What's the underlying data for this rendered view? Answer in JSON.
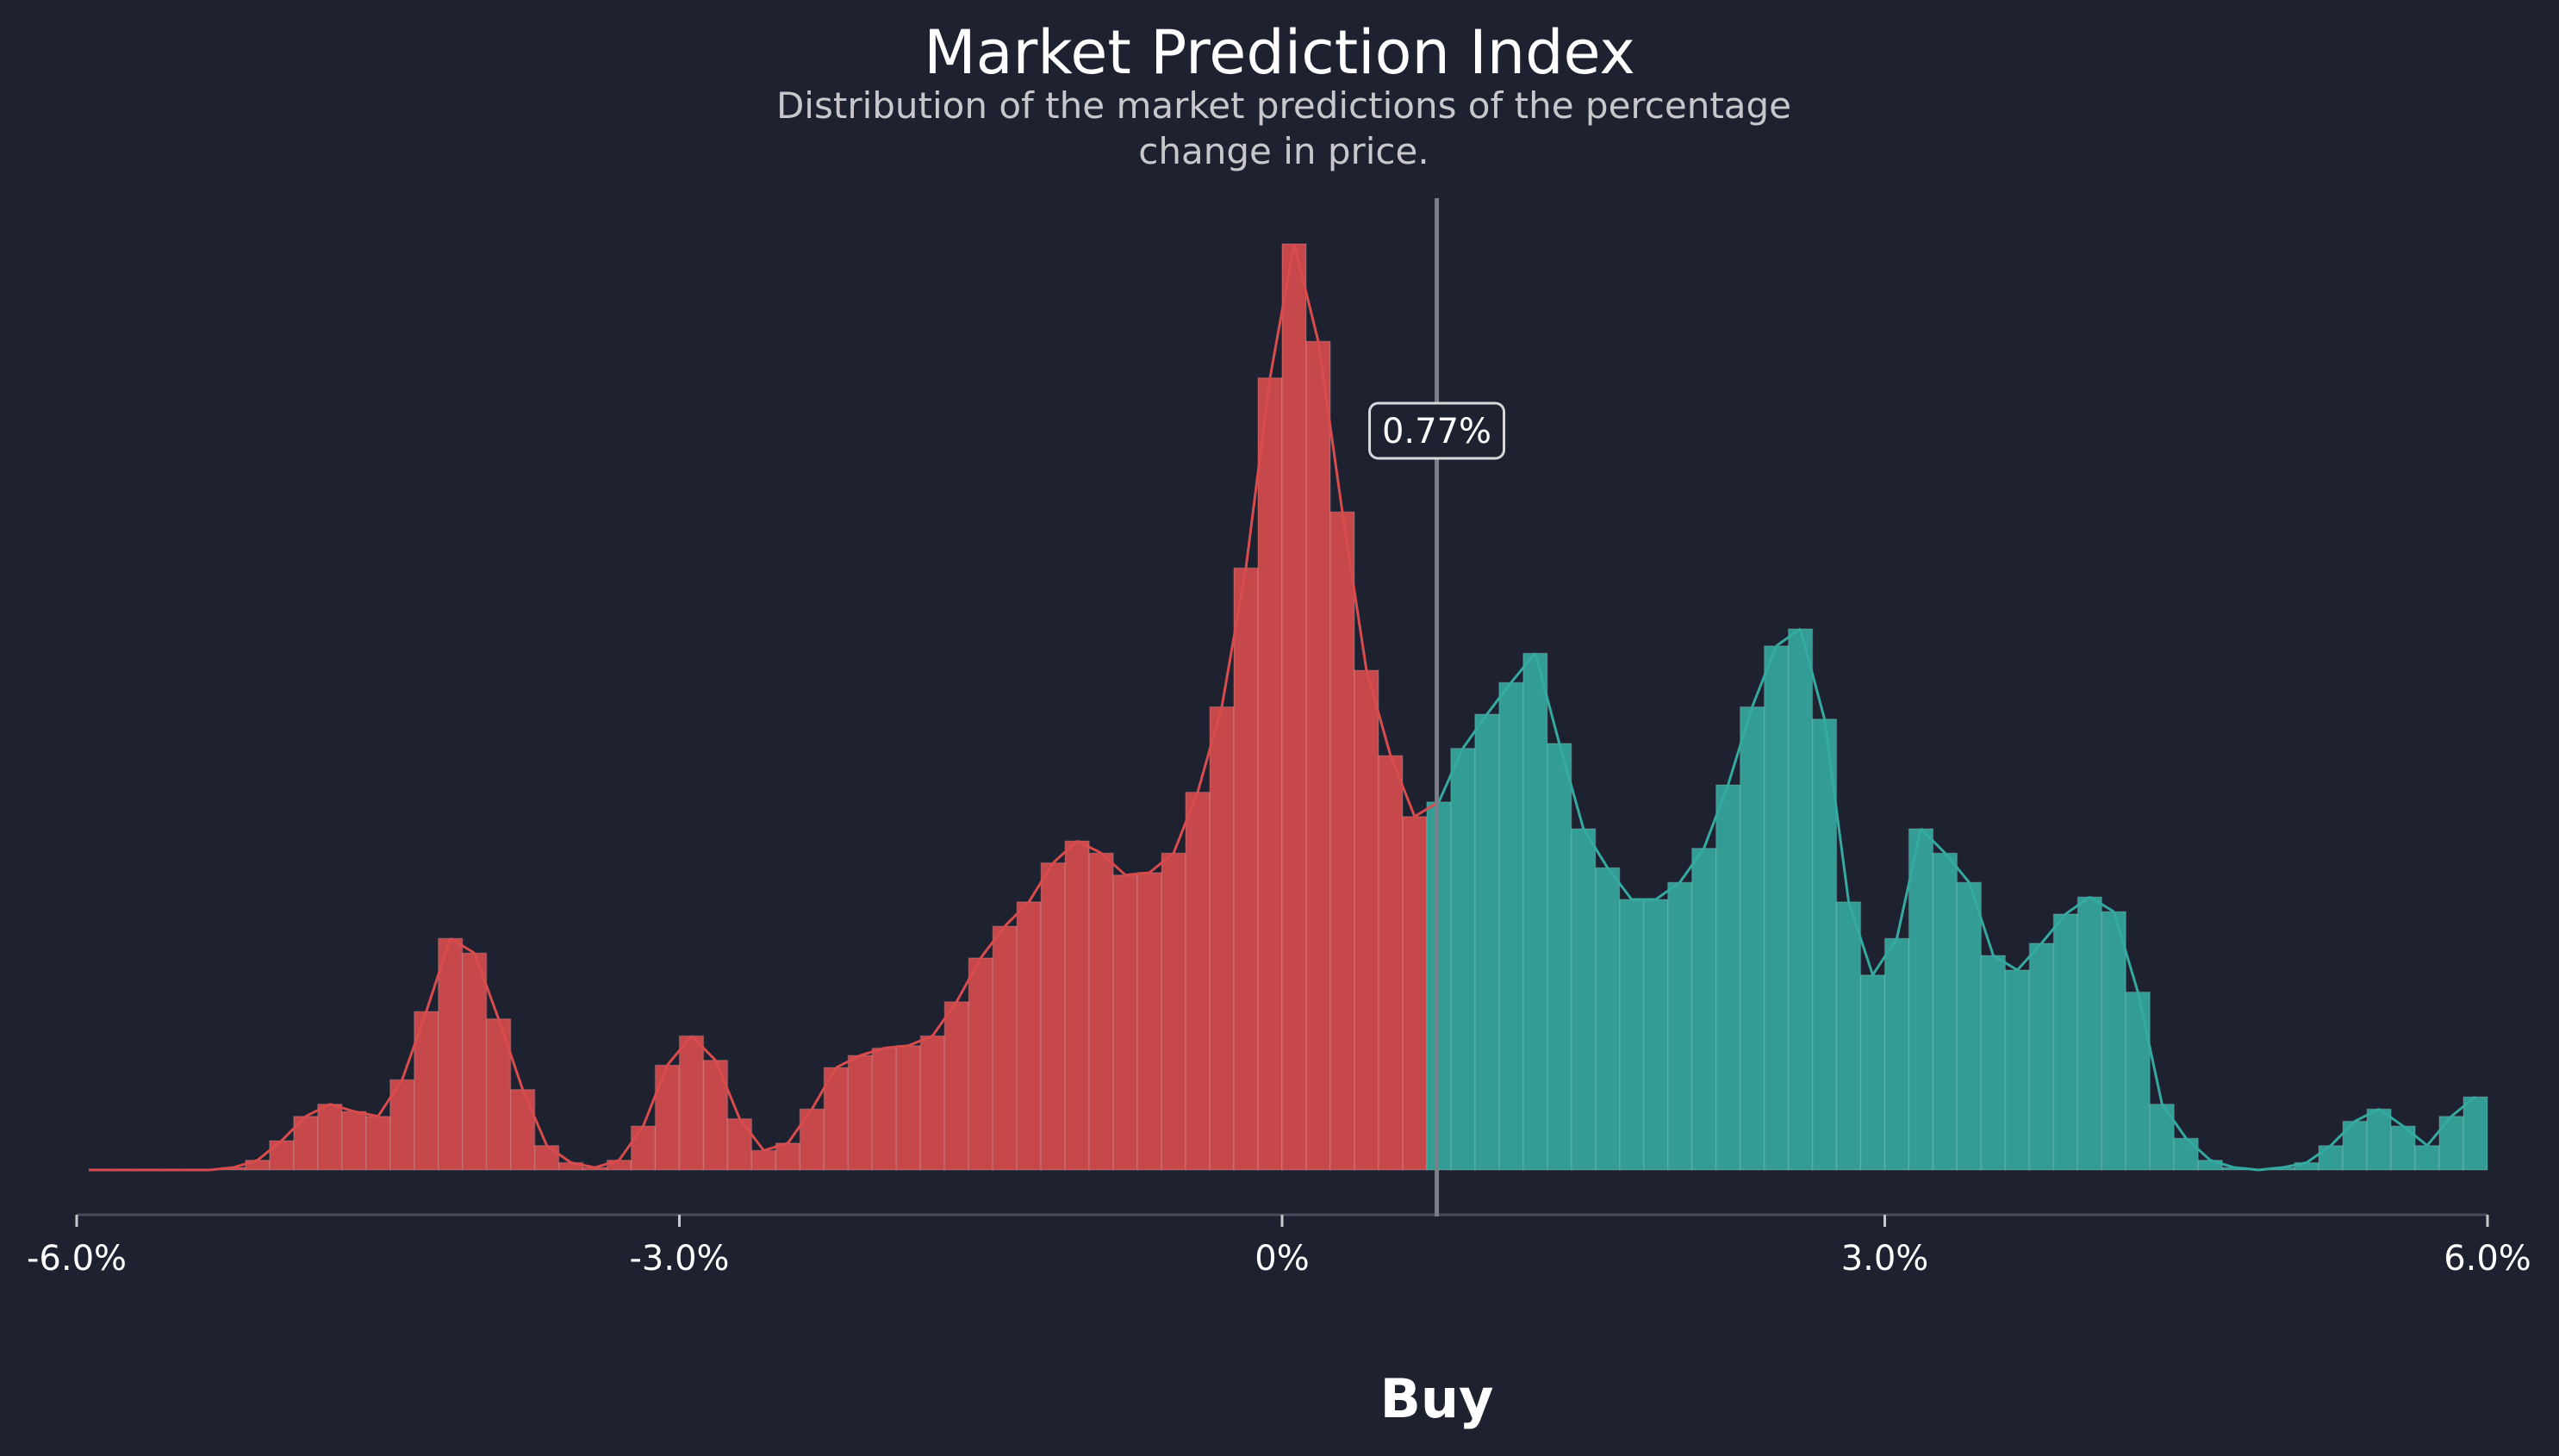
{
  "chart_data": {
    "type": "area",
    "title": "Market Prediction Index",
    "subtitle_lines": [
      "Distribution of the market predictions of the percentage",
      "change in price."
    ],
    "xlabel": "",
    "ylabel": "",
    "xlim": [
      -6.0,
      6.0
    ],
    "x_ticks": [
      -6,
      -3,
      0,
      3,
      6
    ],
    "x_tick_labels": [
      "-6.0%",
      "-3.0%",
      "0%",
      "3.0%",
      "6.0%"
    ],
    "marker": {
      "value": 0.77,
      "label": "0.77%"
    },
    "signal_label": "Buy",
    "grid": false,
    "negative_color": "#d94c4e",
    "positive_color": "#35aaa0",
    "x": [
      -5.94,
      -5.82,
      -5.7,
      -5.58,
      -5.46,
      -5.34,
      -5.22,
      -5.1,
      -4.98,
      -4.86,
      -4.74,
      -4.62,
      -4.5,
      -4.38,
      -4.26,
      -4.14,
      -4.02,
      -3.9,
      -3.78,
      -3.66,
      -3.54,
      -3.42,
      -3.3,
      -3.18,
      -3.06,
      -2.94,
      -2.82,
      -2.7,
      -2.58,
      -2.46,
      -2.34,
      -2.22,
      -2.1,
      -1.98,
      -1.86,
      -1.74,
      -1.62,
      -1.5,
      -1.38,
      -1.26,
      -1.14,
      -1.02,
      -0.9,
      -0.78,
      -0.66,
      -0.54,
      -0.42,
      -0.3,
      -0.18,
      -0.06,
      0.06,
      0.18,
      0.3,
      0.42,
      0.54,
      0.66,
      0.78,
      0.9,
      1.02,
      1.14,
      1.26,
      1.38,
      1.5,
      1.62,
      1.74,
      1.86,
      1.98,
      2.1,
      2.22,
      2.34,
      2.46,
      2.58,
      2.7,
      2.82,
      2.94,
      3.06,
      3.18,
      3.3,
      3.42,
      3.54,
      3.66,
      3.78,
      3.9,
      4.02,
      4.14,
      4.26,
      4.38,
      4.5,
      4.62,
      4.74,
      4.86,
      4.98,
      5.1,
      5.22,
      5.34,
      5.46,
      5.58,
      5.7,
      5.82,
      5.94
    ],
    "values": [
      0.0,
      0.0,
      0.0,
      0.0,
      0.0,
      0.0,
      0.01,
      0.04,
      0.12,
      0.22,
      0.27,
      0.24,
      0.22,
      0.37,
      0.65,
      0.95,
      0.89,
      0.62,
      0.33,
      0.1,
      0.03,
      0.01,
      0.04,
      0.18,
      0.43,
      0.55,
      0.45,
      0.21,
      0.08,
      0.11,
      0.25,
      0.42,
      0.47,
      0.5,
      0.51,
      0.55,
      0.69,
      0.87,
      1.0,
      1.1,
      1.26,
      1.35,
      1.3,
      1.21,
      1.22,
      1.3,
      1.55,
      1.9,
      2.47,
      3.25,
      3.8,
      3.4,
      2.7,
      2.05,
      1.7,
      1.45,
      1.51,
      1.73,
      1.87,
      2.0,
      2.12,
      1.75,
      1.4,
      1.24,
      1.11,
      1.11,
      1.18,
      1.32,
      1.58,
      1.9,
      2.15,
      2.22,
      1.85,
      1.1,
      0.8,
      0.95,
      1.4,
      1.3,
      1.18,
      0.88,
      0.82,
      0.93,
      1.05,
      1.12,
      1.06,
      0.73,
      0.27,
      0.13,
      0.04,
      0.01,
      0.0,
      0.01,
      0.03,
      0.1,
      0.2,
      0.25,
      0.18,
      0.1,
      0.22,
      0.3
    ]
  }
}
